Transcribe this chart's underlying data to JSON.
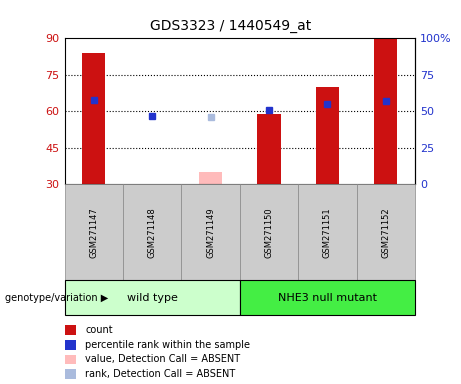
{
  "title": "GDS3323 / 1440549_at",
  "samples": [
    "GSM271147",
    "GSM271148",
    "GSM271149",
    "GSM271150",
    "GSM271151",
    "GSM271152"
  ],
  "count_values": [
    84,
    30,
    35,
    59,
    70,
    90
  ],
  "count_absent": [
    false,
    true,
    true,
    false,
    false,
    false
  ],
  "rank_values": [
    58,
    47,
    46,
    51,
    55,
    57
  ],
  "rank_absent": [
    false,
    false,
    true,
    false,
    false,
    false
  ],
  "ylim_left": [
    30,
    90
  ],
  "ylim_right": [
    0,
    100
  ],
  "yticks_left": [
    30,
    45,
    60,
    75,
    90
  ],
  "yticks_right": [
    0,
    25,
    50,
    75,
    100
  ],
  "bar_color_present": "#cc1111",
  "bar_color_absent": "#ffbbbb",
  "rank_color_present": "#2233cc",
  "rank_color_absent": "#aabbdd",
  "group1_label": "wild type",
  "group2_label": "NHE3 null mutant",
  "group1_color": "#ccffcc",
  "group2_color": "#44ee44",
  "genotype_label": "genotype/variation",
  "legend_items": [
    {
      "label": "count",
      "color": "#cc1111"
    },
    {
      "label": "percentile rank within the sample",
      "color": "#2233cc"
    },
    {
      "label": "value, Detection Call = ABSENT",
      "color": "#ffbbbb"
    },
    {
      "label": "rank, Detection Call = ABSENT",
      "color": "#aabbdd"
    }
  ],
  "bar_width": 0.4,
  "rank_marker_size": 5,
  "sample_box_color": "#cccccc"
}
